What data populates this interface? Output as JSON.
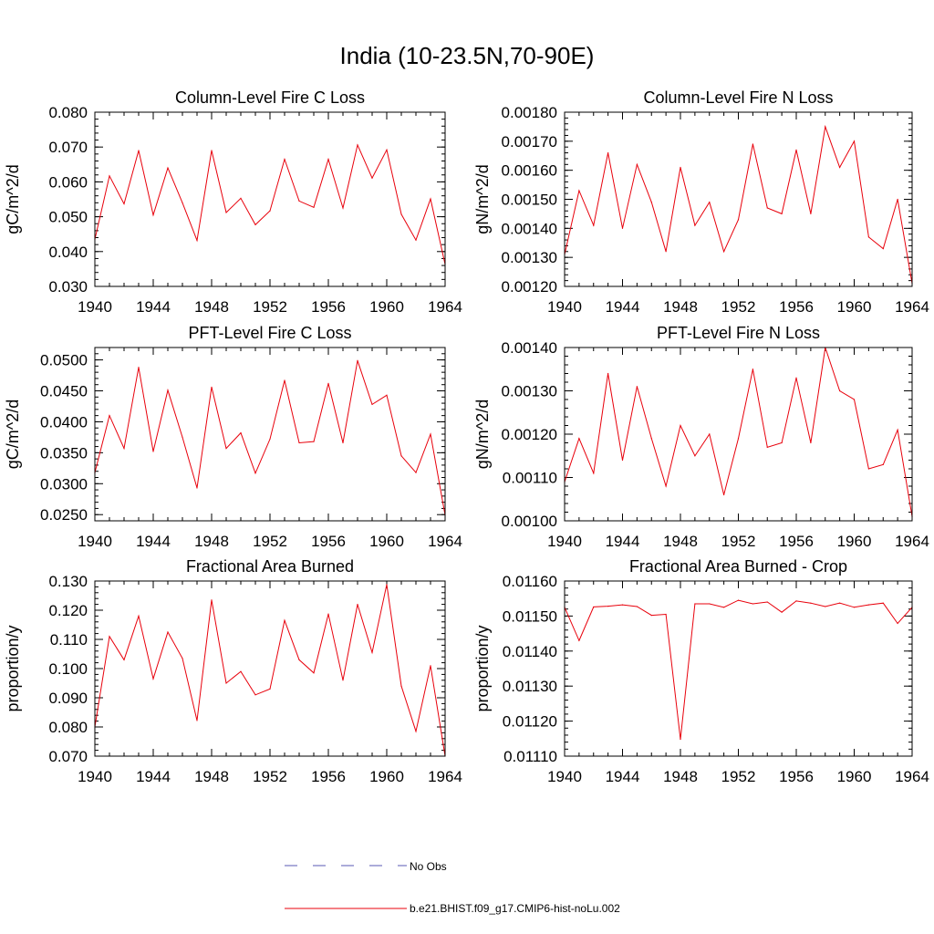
{
  "title": "India (10-23.5N,70-90E)",
  "series_color": "#e8000b",
  "obs_color": "#5a5ab4",
  "legend": {
    "obs_label": "No Obs",
    "model_label": "b.e21.BHIST.f09_g17.CMIP6-hist-noLu.002"
  },
  "chart_data": [
    {
      "type": "line",
      "title": "Column-Level Fire C Loss",
      "ylabel": "gC/m^2/d",
      "xlim": [
        1940,
        1964
      ],
      "ylim": [
        0.03,
        0.08
      ],
      "xticks": [
        "1940",
        "1944",
        "1948",
        "1952",
        "1956",
        "1960",
        "1964"
      ],
      "yticks": [
        "0.030",
        "0.040",
        "0.050",
        "0.060",
        "0.070",
        "0.080"
      ],
      "x": [
        1940,
        1941,
        1942,
        1943,
        1944,
        1945,
        1946,
        1947,
        1948,
        1949,
        1950,
        1951,
        1952,
        1953,
        1954,
        1955,
        1956,
        1957,
        1958,
        1959,
        1960,
        1961,
        1962,
        1963,
        1964
      ],
      "series": [
        {
          "values": [
            0.0435,
            0.0617,
            0.0537,
            0.069,
            0.0505,
            0.064,
            0.054,
            0.0432,
            0.069,
            0.0512,
            0.0553,
            0.0477,
            0.0517,
            0.0665,
            0.0545,
            0.0527,
            0.0665,
            0.0525,
            0.0706,
            0.0611,
            0.0692,
            0.0507,
            0.0433,
            0.0551,
            0.0363
          ]
        }
      ]
    },
    {
      "type": "line",
      "title": "Column-Level Fire N Loss",
      "ylabel": "gN/m^2/d",
      "xlim": [
        1940,
        1964
      ],
      "ylim": [
        0.0012,
        0.0018
      ],
      "xticks": [
        "1940",
        "1944",
        "1948",
        "1952",
        "1956",
        "1960",
        "1964"
      ],
      "yticks": [
        "0.00120",
        "0.00130",
        "0.00140",
        "0.00150",
        "0.00160",
        "0.00170",
        "0.00180"
      ],
      "x": [
        1940,
        1941,
        1942,
        1943,
        1944,
        1945,
        1946,
        1947,
        1948,
        1949,
        1950,
        1951,
        1952,
        1953,
        1954,
        1955,
        1956,
        1957,
        1958,
        1959,
        1960,
        1961,
        1962,
        1963,
        1964
      ],
      "series": [
        {
          "values": [
            0.00131,
            0.00153,
            0.00141,
            0.00166,
            0.0014,
            0.00162,
            0.00149,
            0.00132,
            0.00161,
            0.00141,
            0.00149,
            0.00132,
            0.00143,
            0.00169,
            0.00147,
            0.00145,
            0.00167,
            0.00145,
            0.00175,
            0.00161,
            0.0017,
            0.00137,
            0.00133,
            0.0015,
            0.00121
          ]
        }
      ]
    },
    {
      "type": "line",
      "title": "PFT-Level Fire C Loss",
      "ylabel": "gC/m^2/d",
      "xlim": [
        1940,
        1964
      ],
      "ylim": [
        0.024,
        0.052
      ],
      "xticks": [
        "1940",
        "1944",
        "1948",
        "1952",
        "1956",
        "1960",
        "1964"
      ],
      "yticks": [
        "0.0250",
        "0.0300",
        "0.0350",
        "0.0400",
        "0.0450",
        "0.0500"
      ],
      "x": [
        1940,
        1941,
        1942,
        1943,
        1944,
        1945,
        1946,
        1947,
        1948,
        1949,
        1950,
        1951,
        1952,
        1953,
        1954,
        1955,
        1956,
        1957,
        1958,
        1959,
        1960,
        1961,
        1962,
        1963,
        1964
      ],
      "series": [
        {
          "values": [
            0.0318,
            0.041,
            0.0357,
            0.0488,
            0.0352,
            0.0451,
            0.0375,
            0.0293,
            0.0456,
            0.0357,
            0.0382,
            0.0317,
            0.0372,
            0.0467,
            0.0366,
            0.0368,
            0.0462,
            0.0366,
            0.0499,
            0.0428,
            0.0443,
            0.0345,
            0.0318,
            0.038,
            0.0249
          ]
        }
      ]
    },
    {
      "type": "line",
      "title": "PFT-Level Fire N Loss",
      "ylabel": "gN/m^2/d",
      "xlim": [
        1940,
        1964
      ],
      "ylim": [
        0.001,
        0.0014
      ],
      "xticks": [
        "1940",
        "1944",
        "1948",
        "1952",
        "1956",
        "1960",
        "1964"
      ],
      "yticks": [
        "0.00100",
        "0.00110",
        "0.00120",
        "0.00130",
        "0.00140"
      ],
      "x": [
        1940,
        1941,
        1942,
        1943,
        1944,
        1945,
        1946,
        1947,
        1948,
        1949,
        1950,
        1951,
        1952,
        1953,
        1954,
        1955,
        1956,
        1957,
        1958,
        1959,
        1960,
        1961,
        1962,
        1963,
        1964
      ],
      "series": [
        {
          "values": [
            0.00109,
            0.00119,
            0.00111,
            0.00134,
            0.00114,
            0.00131,
            0.00119,
            0.00108,
            0.00122,
            0.00115,
            0.0012,
            0.00106,
            0.00119,
            0.00135,
            0.00117,
            0.00118,
            0.00133,
            0.00118,
            0.0014,
            0.0013,
            0.00128,
            0.00112,
            0.00113,
            0.00121,
            0.00101
          ]
        }
      ]
    },
    {
      "type": "line",
      "title": "Fractional Area Burned",
      "ylabel": "proportion/y",
      "xlim": [
        1940,
        1964
      ],
      "ylim": [
        0.07,
        0.13
      ],
      "xticks": [
        "1940",
        "1944",
        "1948",
        "1952",
        "1956",
        "1960",
        "1964"
      ],
      "yticks": [
        "0.070",
        "0.080",
        "0.090",
        "0.100",
        "0.110",
        "0.120",
        "0.130"
      ],
      "x": [
        1940,
        1941,
        1942,
        1943,
        1944,
        1945,
        1946,
        1947,
        1948,
        1949,
        1950,
        1951,
        1952,
        1953,
        1954,
        1955,
        1956,
        1957,
        1958,
        1959,
        1960,
        1961,
        1962,
        1963,
        1964
      ],
      "series": [
        {
          "values": [
            0.08,
            0.111,
            0.103,
            0.118,
            0.0965,
            0.1125,
            0.1035,
            0.0822,
            0.1235,
            0.095,
            0.099,
            0.091,
            0.093,
            0.1165,
            0.103,
            0.0985,
            0.1187,
            0.096,
            0.122,
            0.1055,
            0.1288,
            0.094,
            0.0785,
            0.101,
            0.07
          ]
        }
      ]
    },
    {
      "type": "line",
      "title": "Fractional Area Burned - Crop",
      "ylabel": "proportion/y",
      "xlim": [
        1940,
        1964
      ],
      "ylim": [
        0.0111,
        0.0116
      ],
      "xticks": [
        "1940",
        "1944",
        "1948",
        "1952",
        "1956",
        "1960",
        "1964"
      ],
      "yticks": [
        "0.01110",
        "0.01120",
        "0.01130",
        "0.01140",
        "0.01150",
        "0.01160"
      ],
      "x": [
        1940,
        1941,
        1942,
        1943,
        1944,
        1945,
        1946,
        1947,
        1948,
        1949,
        1950,
        1951,
        1952,
        1953,
        1954,
        1955,
        1956,
        1957,
        1958,
        1959,
        1960,
        1961,
        1962,
        1963,
        1964
      ],
      "series": [
        {
          "values": [
            0.011525,
            0.01143,
            0.011526,
            0.011528,
            0.011532,
            0.011527,
            0.011502,
            0.011505,
            0.011148,
            0.011535,
            0.011535,
            0.011525,
            0.011545,
            0.011535,
            0.01154,
            0.011511,
            0.011543,
            0.011537,
            0.011527,
            0.011537,
            0.011525,
            0.011532,
            0.011537,
            0.011479,
            0.011525
          ]
        }
      ]
    }
  ]
}
